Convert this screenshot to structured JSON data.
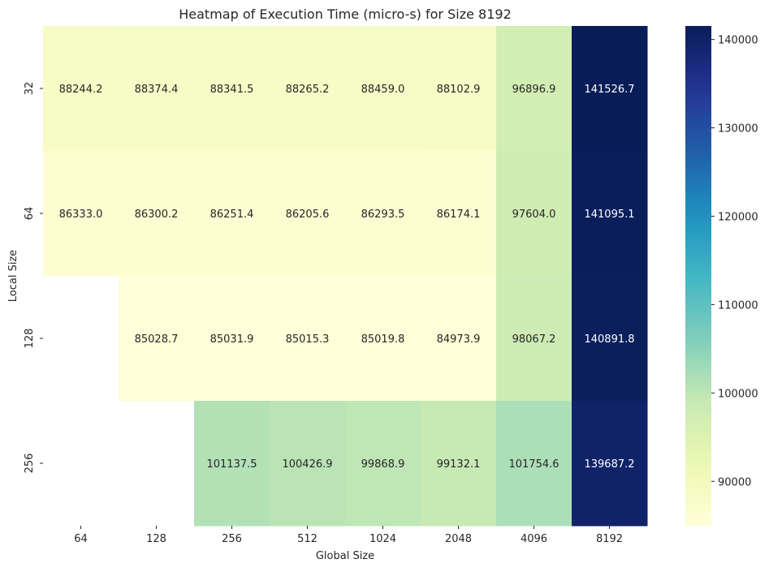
{
  "chart_data": {
    "type": "heatmap",
    "title": "Heatmap of Execution Time (micro-s) for Size 8192",
    "xlabel": "Global Size",
    "ylabel": "Local Size",
    "x_categories": [
      "64",
      "128",
      "256",
      "512",
      "1024",
      "2048",
      "4096",
      "8192"
    ],
    "y_categories": [
      "32",
      "64",
      "128",
      "256"
    ],
    "values": [
      [
        88244.2,
        88374.4,
        88341.5,
        88265.2,
        88459.0,
        88102.9,
        96896.9,
        141526.7
      ],
      [
        86333.0,
        86300.2,
        86251.4,
        86205.6,
        86293.5,
        86174.1,
        97604.0,
        141095.1
      ],
      [
        null,
        85028.7,
        85031.9,
        85015.3,
        85019.8,
        84973.9,
        98067.2,
        140891.8
      ],
      [
        null,
        null,
        101137.5,
        100426.9,
        99868.9,
        99132.1,
        101754.6,
        139687.2
      ]
    ],
    "value_format": "1 decimal",
    "colormap": "YlGnBu",
    "color_range": [
      84973.9,
      141526.7
    ],
    "colorbar_ticks": [
      90000,
      100000,
      110000,
      120000,
      130000,
      140000
    ],
    "colorbar_tick_labels": [
      "90000",
      "100000",
      "110000",
      "120000",
      "130000",
      "140000"
    ],
    "grid": false,
    "legend": "colorbar-right"
  }
}
